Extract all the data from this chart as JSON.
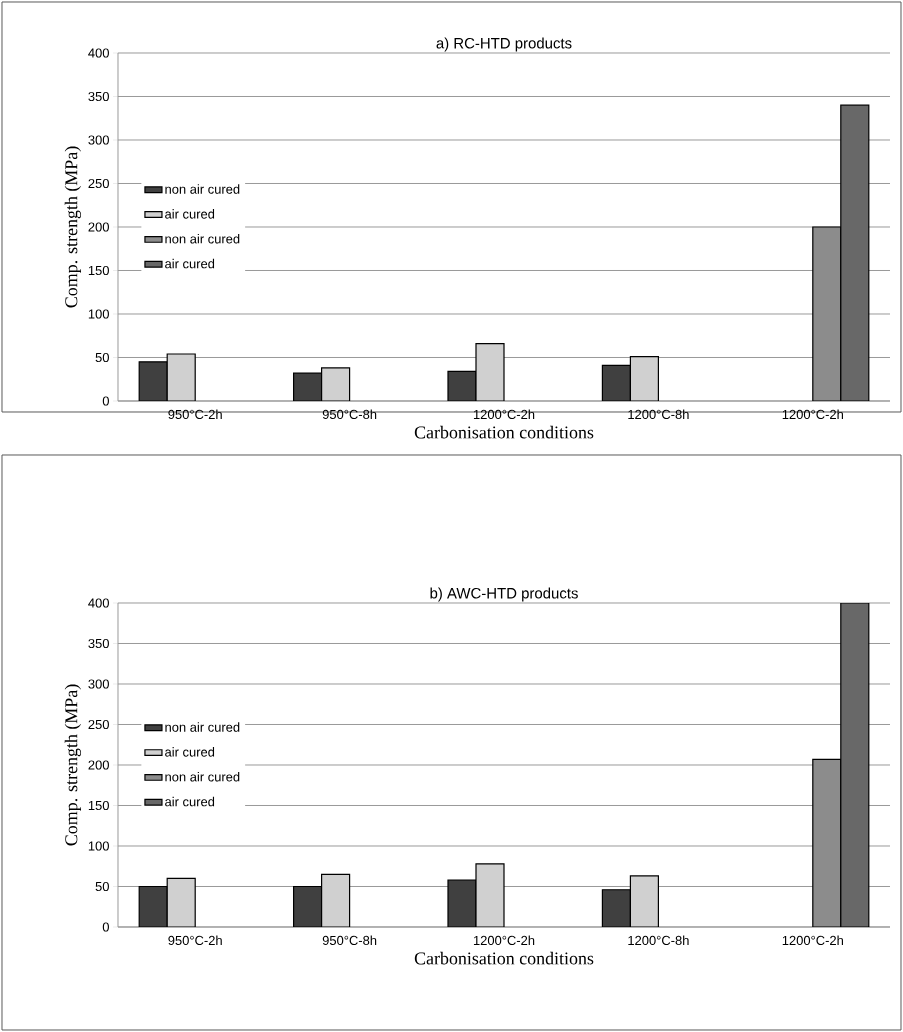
{
  "chart_data": [
    {
      "type": "bar",
      "title": "a) RC-HTD products",
      "xlabel": "Carbonisation conditions",
      "ylabel": "Comp. strength (MPa)",
      "categories": [
        "950°C-2h",
        "950°C-8h",
        "1200°C-2h",
        "1200°C-8h",
        "1200°C-2h"
      ],
      "series": [
        {
          "name": "non air cured",
          "color": "#404040",
          "values": [
            45,
            32,
            34,
            41,
            null
          ]
        },
        {
          "name": "air cured",
          "color": "#d0d0d0",
          "values": [
            54,
            38,
            66,
            51,
            null
          ]
        },
        {
          "name": "non air cured",
          "color": "#8c8c8c",
          "values": [
            null,
            null,
            null,
            null,
            200
          ]
        },
        {
          "name": "air cured",
          "color": "#686868",
          "values": [
            null,
            null,
            null,
            null,
            340
          ]
        }
      ],
      "ylim": [
        0,
        400
      ],
      "yticks": [
        0,
        50,
        100,
        150,
        200,
        250,
        300,
        350,
        400
      ],
      "grid": "y",
      "legend": "left"
    },
    {
      "type": "bar",
      "title": "b) AWC-HTD products",
      "xlabel": "Carbonisation conditions",
      "ylabel": "Comp. strength (MPa)",
      "categories": [
        "950°C-2h",
        "950°C-8h",
        "1200°C-2h",
        "1200°C-8h",
        "1200°C-2h"
      ],
      "series": [
        {
          "name": "non air cured",
          "color": "#404040",
          "values": [
            50,
            50,
            58,
            46,
            null
          ]
        },
        {
          "name": "air cured",
          "color": "#d0d0d0",
          "values": [
            60,
            65,
            78,
            63,
            null
          ]
        },
        {
          "name": "non air cured",
          "color": "#8c8c8c",
          "values": [
            null,
            null,
            null,
            null,
            207
          ]
        },
        {
          "name": "air cured",
          "color": "#686868",
          "values": [
            null,
            null,
            null,
            null,
            400
          ]
        }
      ],
      "ylim": [
        0,
        400
      ],
      "yticks": [
        0,
        50,
        100,
        150,
        200,
        250,
        300,
        350,
        400
      ],
      "grid": "y",
      "legend": "left"
    }
  ]
}
